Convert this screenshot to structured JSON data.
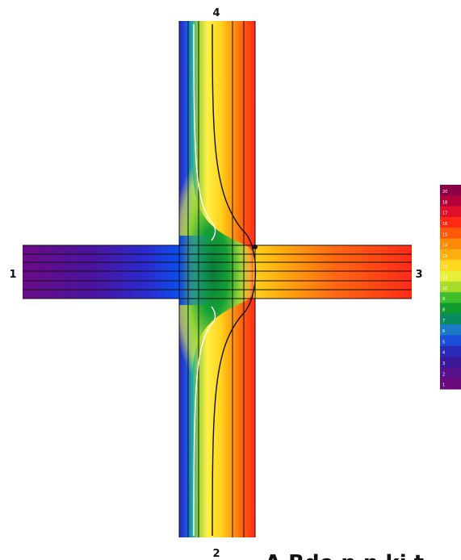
{
  "figure": {
    "labels": {
      "left": "1",
      "bottom": "2",
      "right": "3",
      "top": "4"
    },
    "caption_fragment": "A Bde n n ki t",
    "legend": {
      "colors": [
        "#8b0046",
        "#b3003a",
        "#e0102a",
        "#ff2a14",
        "#ff5a0a",
        "#ff8a08",
        "#ffb010",
        "#ffd820",
        "#e8ef38",
        "#a8dc2c",
        "#3fbf2c",
        "#0f9a2e",
        "#0a8a60",
        "#1a7ac8",
        "#1a4ed8",
        "#2a2ab8",
        "#3a1a9a",
        "#55108a",
        "#6a0a7a"
      ],
      "tick_labels": [
        "20",
        "18",
        "17",
        "16",
        "15",
        "14",
        "13",
        "12",
        "11",
        "10",
        "9",
        "8",
        "7",
        "6",
        "5",
        "4",
        "3",
        "2",
        "1"
      ]
    }
  }
}
